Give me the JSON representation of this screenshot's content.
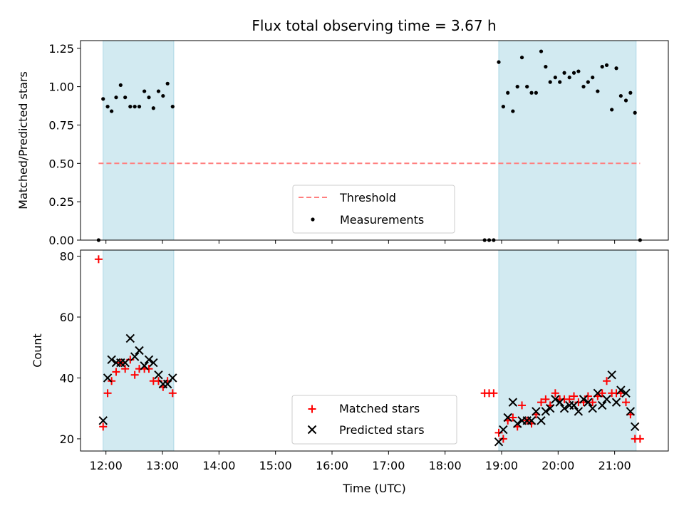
{
  "title": "Flux total observing time = 3.67 h",
  "colors": {
    "shade": "#add8e6",
    "threshold": "#ff7f7f",
    "measurement": "#000000",
    "matched": "#ff0000",
    "predicted": "#000000"
  },
  "chart_data": [
    {
      "type": "scatter",
      "ylabel": "Matched/Predicted stars",
      "xlim": [
        11.55,
        21.95
      ],
      "ylim": [
        0,
        1.3
      ],
      "yticks": [
        0,
        0.25,
        0.5,
        0.75,
        1.0,
        1.25
      ],
      "ytick_labels": [
        "0.00",
        "0.25",
        "0.50",
        "0.75",
        "1.00",
        "1.25"
      ],
      "shaded_intervals": [
        [
          11.95,
          13.2
        ],
        [
          18.95,
          21.38
        ]
      ],
      "threshold": {
        "name": "Threshold",
        "y": 0.5,
        "x_range": [
          11.87,
          21.45
        ]
      },
      "legend": {
        "position": "lower center",
        "entries": [
          "Threshold",
          "Measurements"
        ]
      },
      "series": [
        {
          "name": "Measurements",
          "points": [
            [
              11.87,
              0.0
            ],
            [
              11.95,
              0.92
            ],
            [
              12.03,
              0.87
            ],
            [
              12.1,
              0.84
            ],
            [
              12.18,
              0.93
            ],
            [
              12.26,
              1.01
            ],
            [
              12.34,
              0.93
            ],
            [
              12.43,
              0.87
            ],
            [
              12.51,
              0.87
            ],
            [
              12.59,
              0.87
            ],
            [
              12.68,
              0.97
            ],
            [
              12.76,
              0.93
            ],
            [
              12.84,
              0.86
            ],
            [
              12.93,
              0.97
            ],
            [
              13.01,
              0.94
            ],
            [
              13.09,
              1.02
            ],
            [
              13.18,
              0.87
            ],
            [
              18.7,
              0.0
            ],
            [
              18.78,
              0.0
            ],
            [
              18.86,
              0.0
            ],
            [
              18.95,
              1.16
            ],
            [
              19.03,
              0.87
            ],
            [
              19.11,
              0.96
            ],
            [
              19.2,
              0.84
            ],
            [
              19.28,
              1.0
            ],
            [
              19.36,
              1.19
            ],
            [
              19.45,
              1.0
            ],
            [
              19.53,
              0.96
            ],
            [
              19.61,
              0.96
            ],
            [
              19.7,
              1.23
            ],
            [
              19.78,
              1.13
            ],
            [
              19.86,
              1.03
            ],
            [
              19.95,
              1.06
            ],
            [
              20.03,
              1.03
            ],
            [
              20.11,
              1.09
            ],
            [
              20.2,
              1.06
            ],
            [
              20.28,
              1.09
            ],
            [
              20.36,
              1.1
            ],
            [
              20.45,
              1.0
            ],
            [
              20.53,
              1.03
            ],
            [
              20.61,
              1.06
            ],
            [
              20.7,
              0.97
            ],
            [
              20.78,
              1.13
            ],
            [
              20.86,
              1.14
            ],
            [
              20.95,
              0.85
            ],
            [
              21.03,
              1.12
            ],
            [
              21.11,
              0.94
            ],
            [
              21.2,
              0.91
            ],
            [
              21.28,
              0.96
            ],
            [
              21.36,
              0.83
            ],
            [
              21.45,
              0.0
            ]
          ]
        }
      ]
    },
    {
      "type": "scatter",
      "ylabel": "Count",
      "xlabel": "Time (UTC)",
      "xlim": [
        11.55,
        21.95
      ],
      "ylim": [
        16,
        82
      ],
      "yticks": [
        20,
        40,
        60,
        80
      ],
      "xticks": [
        12,
        13,
        14,
        15,
        16,
        17,
        18,
        19,
        20,
        21
      ],
      "xtick_labels": [
        "12:00",
        "13:00",
        "14:00",
        "15:00",
        "16:00",
        "17:00",
        "18:00",
        "19:00",
        "20:00",
        "21:00"
      ],
      "shaded_intervals": [
        [
          11.95,
          13.2
        ],
        [
          18.95,
          21.38
        ]
      ],
      "legend": {
        "position": "lower center",
        "entries": [
          "Matched stars",
          "Predicted stars"
        ]
      },
      "series": [
        {
          "name": "Matched stars",
          "marker": "+",
          "points": [
            [
              11.87,
              79
            ],
            [
              11.95,
              24
            ],
            [
              12.03,
              35
            ],
            [
              12.1,
              39
            ],
            [
              12.18,
              42
            ],
            [
              12.26,
              45
            ],
            [
              12.34,
              43
            ],
            [
              12.43,
              46
            ],
            [
              12.51,
              41
            ],
            [
              12.59,
              43
            ],
            [
              12.68,
              43
            ],
            [
              12.76,
              43
            ],
            [
              12.84,
              39
            ],
            [
              12.93,
              39
            ],
            [
              13.01,
              37
            ],
            [
              13.09,
              39
            ],
            [
              13.18,
              35
            ],
            [
              18.7,
              35
            ],
            [
              18.78,
              35
            ],
            [
              18.86,
              35
            ],
            [
              18.95,
              22
            ],
            [
              19.03,
              20
            ],
            [
              19.11,
              26
            ],
            [
              19.2,
              27
            ],
            [
              19.28,
              24
            ],
            [
              19.36,
              31
            ],
            [
              19.45,
              26
            ],
            [
              19.53,
              25
            ],
            [
              19.61,
              28
            ],
            [
              19.7,
              32
            ],
            [
              19.78,
              33
            ],
            [
              19.86,
              31
            ],
            [
              19.95,
              35
            ],
            [
              20.03,
              33
            ],
            [
              20.11,
              33
            ],
            [
              20.2,
              33
            ],
            [
              20.28,
              34
            ],
            [
              20.36,
              32
            ],
            [
              20.45,
              32
            ],
            [
              20.53,
              34
            ],
            [
              20.61,
              32
            ],
            [
              20.7,
              34
            ],
            [
              20.78,
              35
            ],
            [
              20.86,
              39
            ],
            [
              20.95,
              35
            ],
            [
              21.03,
              35
            ],
            [
              21.11,
              35
            ],
            [
              21.2,
              32
            ],
            [
              21.28,
              28
            ],
            [
              21.36,
              20
            ],
            [
              21.45,
              20
            ]
          ]
        },
        {
          "name": "Predicted stars",
          "marker": "x",
          "points": [
            [
              11.95,
              26
            ],
            [
              12.03,
              40
            ],
            [
              12.1,
              46
            ],
            [
              12.18,
              45
            ],
            [
              12.26,
              45
            ],
            [
              12.34,
              45
            ],
            [
              12.43,
              53
            ],
            [
              12.51,
              47
            ],
            [
              12.59,
              49
            ],
            [
              12.68,
              44
            ],
            [
              12.76,
              46
            ],
            [
              12.84,
              45
            ],
            [
              12.93,
              41
            ],
            [
              13.01,
              38
            ],
            [
              13.09,
              38
            ],
            [
              13.18,
              40
            ],
            [
              18.95,
              19
            ],
            [
              19.03,
              23
            ],
            [
              19.11,
              27
            ],
            [
              19.2,
              32
            ],
            [
              19.28,
              25
            ],
            [
              19.36,
              26
            ],
            [
              19.45,
              26
            ],
            [
              19.53,
              26
            ],
            [
              19.61,
              29
            ],
            [
              19.7,
              26
            ],
            [
              19.78,
              29
            ],
            [
              19.86,
              30
            ],
            [
              19.95,
              33
            ],
            [
              20.03,
              32
            ],
            [
              20.11,
              30
            ],
            [
              20.2,
              31
            ],
            [
              20.28,
              31
            ],
            [
              20.36,
              29
            ],
            [
              20.45,
              33
            ],
            [
              20.53,
              32
            ],
            [
              20.61,
              30
            ],
            [
              20.7,
              35
            ],
            [
              20.78,
              31
            ],
            [
              20.86,
              33
            ],
            [
              20.95,
              41
            ],
            [
              21.03,
              32
            ],
            [
              21.11,
              36
            ],
            [
              21.2,
              35
            ],
            [
              21.28,
              29
            ],
            [
              21.36,
              24
            ]
          ]
        }
      ]
    }
  ]
}
